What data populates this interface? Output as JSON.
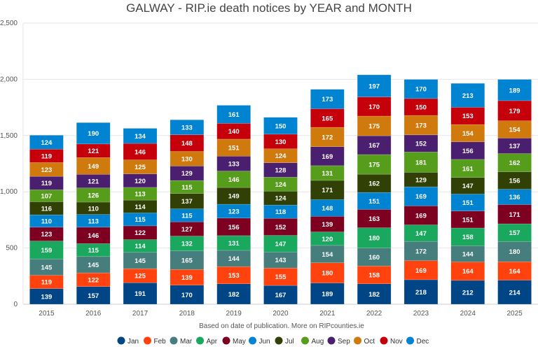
{
  "chart_data": {
    "type": "bar",
    "stacked": true,
    "title": "GALWAY - RIP.ie death notices by YEAR and MONTH",
    "note": "Based on date of publication. More on RIPcounties.ie",
    "categories": [
      "2015",
      "2016",
      "2017",
      "2018",
      "2019",
      "2020",
      "2021",
      "2022",
      "2023",
      "2024",
      "2025"
    ],
    "ylim": [
      0,
      2500
    ],
    "yticks": [
      "0",
      "500",
      "1,000",
      "1,500",
      "2,000",
      "2,500"
    ],
    "ytick_values": [
      0,
      500,
      1000,
      1500,
      2000,
      2500
    ],
    "grid": true,
    "legend_position": "bottom",
    "series": [
      {
        "name": "Jan",
        "color": "#004586",
        "values": [
          139,
          157,
          191,
          170,
          182,
          167,
          189,
          182,
          218,
          212,
          214
        ]
      },
      {
        "name": "Feb",
        "color": "#ff420e",
        "values": [
          119,
          122,
          125,
          139,
          153,
          155,
          180,
          158,
          169,
          164,
          164
        ]
      },
      {
        "name": "Mar",
        "color": "#467d7d",
        "values": [
          145,
          145,
          145,
          165,
          144,
          143,
          154,
          160,
          172,
          144,
          180
        ]
      },
      {
        "name": "Apr",
        "color": "#1aa85f",
        "values": [
          159,
          115,
          114,
          132,
          131,
          147,
          120,
          180,
          147,
          158,
          157
        ]
      },
      {
        "name": "May",
        "color": "#7e0021",
        "values": [
          123,
          146,
          122,
          127,
          156,
          152,
          139,
          163,
          169,
          151,
          171
        ]
      },
      {
        "name": "Jun",
        "color": "#0084d1",
        "values": [
          110,
          113,
          115,
          115,
          123,
          118,
          148,
          151,
          169,
          151,
          136
        ]
      },
      {
        "name": "Jul",
        "color": "#314004",
        "values": [
          116,
          110,
          114,
          137,
          149,
          124,
          171,
          162,
          129,
          147,
          156
        ]
      },
      {
        "name": "Aug",
        "color": "#579d1c",
        "values": [
          107,
          126,
          113,
          115,
          146,
          124,
          131,
          175,
          181,
          161,
          162
        ]
      },
      {
        "name": "Sep",
        "color": "#4b1f6f",
        "values": [
          119,
          121,
          120,
          129,
          133,
          128,
          169,
          167,
          152,
          156,
          137
        ]
      },
      {
        "name": "Oct",
        "color": "#d07a0e",
        "values": [
          123,
          149,
          125,
          130,
          151,
          124,
          172,
          175,
          173,
          154,
          154
        ]
      },
      {
        "name": "Nov",
        "color": "#c5000b",
        "values": [
          119,
          121,
          146,
          148,
          140,
          130,
          165,
          170,
          150,
          153,
          179
        ]
      },
      {
        "name": "Dec",
        "color": "#0084d1",
        "values": [
          124,
          190,
          134,
          133,
          161,
          150,
          173,
          197,
          170,
          213,
          189
        ]
      }
    ]
  }
}
